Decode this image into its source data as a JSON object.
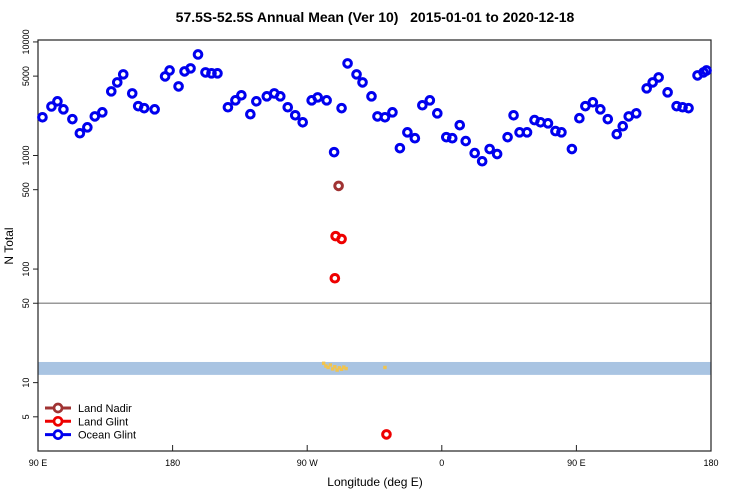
{
  "chart_data": {
    "type": "scatter",
    "title": "57.5S-52.5S Annual Mean (Ver 10)   2015-01-01 to 2020-12-18",
    "xlabel": "Longitude (deg E)",
    "ylabel": "N Total",
    "x_range": [
      90,
      540
    ],
    "y_range": [
      2.5,
      10400
    ],
    "y_scale": "log",
    "grid": false,
    "legend_position": "bottom-left",
    "x_ticks": [
      {
        "v": 90,
        "label": "90 E"
      },
      {
        "v": 180,
        "label": "180"
      },
      {
        "v": 270,
        "label": "90 W"
      },
      {
        "v": 360,
        "label": "0"
      },
      {
        "v": 450,
        "label": "90 E"
      },
      {
        "v": 540,
        "label": "180"
      }
    ],
    "y_ticks": [
      {
        "v": 10000,
        "label": "10000"
      },
      {
        "v": 5000,
        "label": "5000"
      },
      {
        "v": 1000,
        "label": "1000"
      },
      {
        "v": 500,
        "label": "500"
      },
      {
        "v": 100,
        "label": "100"
      },
      {
        "v": 50,
        "label": "50"
      },
      {
        "v": 10,
        "label": "10"
      },
      {
        "v": 5,
        "label": "5"
      }
    ],
    "ref_line": {
      "y": 50,
      "color": "#999999"
    },
    "band": {
      "y_min": 11.7,
      "y_max": 15.2,
      "color": "#A9C4E2"
    },
    "flag_points": {
      "name": "flagged-samples",
      "color": "#F2C44D",
      "points": [
        [
          281,
          14.8
        ],
        [
          282.5,
          14.0
        ],
        [
          284,
          13.6
        ],
        [
          285.5,
          14.3
        ],
        [
          287,
          13.2
        ],
        [
          288.5,
          13.8
        ],
        [
          290,
          12.9
        ],
        [
          291.5,
          13.5
        ],
        [
          293,
          13.1
        ],
        [
          294.5,
          13.7
        ],
        [
          296,
          13.3
        ],
        [
          322,
          13.6
        ]
      ]
    },
    "series": [
      {
        "name": "Land Nadir",
        "color": "#A03333",
        "points": [
          [
            291,
            540
          ]
        ]
      },
      {
        "name": "Land Glint",
        "color": "#EE0000",
        "points": [
          [
            289,
            195
          ],
          [
            293,
            184
          ],
          [
            288.5,
            83
          ],
          [
            323,
            3.5
          ]
        ]
      },
      {
        "name": "Ocean Glint",
        "color": "#0000EE",
        "points": [
          [
            93,
            2170
          ],
          [
            99,
            2700
          ],
          [
            103,
            3000
          ],
          [
            107,
            2550
          ],
          [
            113,
            2090
          ],
          [
            118,
            1570
          ],
          [
            123,
            1770
          ],
          [
            128,
            2210
          ],
          [
            133,
            2400
          ],
          [
            139,
            3670
          ],
          [
            143,
            4400
          ],
          [
            147,
            5180
          ],
          [
            153,
            3520
          ],
          [
            157,
            2720
          ],
          [
            161,
            2610
          ],
          [
            168,
            2550
          ],
          [
            175,
            4970
          ],
          [
            178,
            5610
          ],
          [
            184,
            4060
          ],
          [
            188,
            5500
          ],
          [
            192,
            5850
          ],
          [
            197,
            7760
          ],
          [
            202,
            5390
          ],
          [
            206,
            5290
          ],
          [
            210,
            5290
          ],
          [
            217,
            2660
          ],
          [
            222,
            3060
          ],
          [
            226,
            3390
          ],
          [
            232,
            2310
          ],
          [
            236,
            3000
          ],
          [
            243,
            3320
          ],
          [
            248,
            3520
          ],
          [
            252,
            3320
          ],
          [
            257,
            2660
          ],
          [
            262,
            2260
          ],
          [
            267,
            1960
          ],
          [
            273,
            3060
          ],
          [
            277,
            3250
          ],
          [
            283,
            3060
          ],
          [
            288,
            1070
          ],
          [
            293,
            2610
          ],
          [
            297,
            6470
          ],
          [
            303,
            5180
          ],
          [
            307,
            4400
          ],
          [
            313,
            3320
          ],
          [
            317,
            2210
          ],
          [
            322,
            2170
          ],
          [
            327,
            2400
          ],
          [
            332,
            1160
          ],
          [
            337,
            1600
          ],
          [
            342,
            1420
          ],
          [
            347,
            2770
          ],
          [
            352,
            3060
          ],
          [
            357,
            2350
          ],
          [
            363,
            1450
          ],
          [
            367,
            1420
          ],
          [
            372,
            1850
          ],
          [
            376,
            1340
          ],
          [
            382,
            1050
          ],
          [
            387,
            890
          ],
          [
            392,
            1140
          ],
          [
            397,
            1030
          ],
          [
            404,
            1450
          ],
          [
            408,
            2260
          ],
          [
            412,
            1600
          ],
          [
            417,
            1600
          ],
          [
            422,
            2050
          ],
          [
            426,
            1960
          ],
          [
            431,
            1920
          ],
          [
            436,
            1640
          ],
          [
            440,
            1600
          ],
          [
            447,
            1140
          ],
          [
            452,
            2130
          ],
          [
            456,
            2720
          ],
          [
            461,
            2940
          ],
          [
            466,
            2550
          ],
          [
            471,
            2090
          ],
          [
            477,
            1540
          ],
          [
            481,
            1810
          ],
          [
            485,
            2210
          ],
          [
            490,
            2350
          ],
          [
            497,
            3900
          ],
          [
            501,
            4400
          ],
          [
            505,
            4870
          ],
          [
            511,
            3600
          ],
          [
            517,
            2720
          ],
          [
            521,
            2660
          ],
          [
            525,
            2610
          ],
          [
            531,
            5070
          ],
          [
            535,
            5390
          ],
          [
            537,
            5610
          ]
        ]
      }
    ],
    "legend": [
      {
        "label": "Land Nadir",
        "color": "#A03333"
      },
      {
        "label": "Land Glint",
        "color": "#EE0000"
      },
      {
        "label": "Ocean Glint",
        "color": "#0000EE"
      }
    ]
  }
}
